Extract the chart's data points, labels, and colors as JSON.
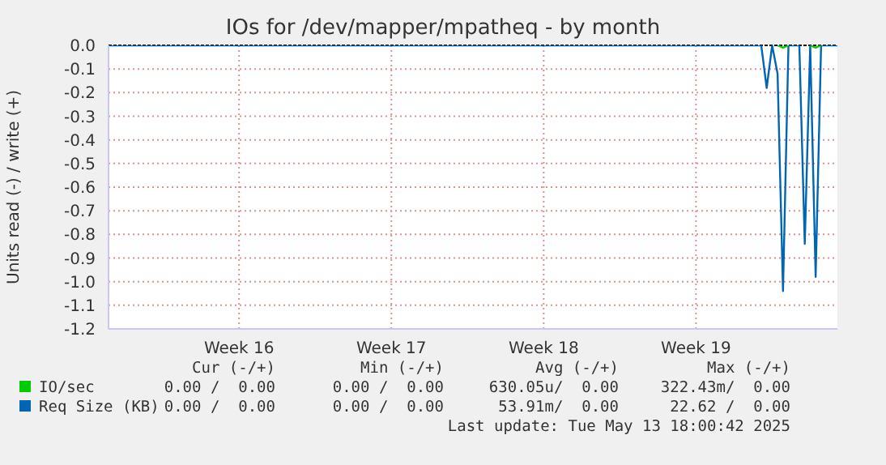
{
  "chart_data": {
    "type": "line",
    "title": "IOs for /dev/mapper/mpatheq - by month",
    "ylabel": "Units read (-) / write (+)",
    "categories": [
      null,
      null,
      null,
      null,
      null,
      null,
      null,
      null,
      null,
      null,
      null,
      null,
      null,
      null,
      null,
      null,
      null,
      null,
      null,
      null,
      null,
      null,
      null,
      null,
      "Week 16",
      null,
      null,
      null,
      null,
      null,
      null,
      null,
      null,
      null,
      null,
      null,
      null,
      null,
      null,
      null,
      null,
      null,
      null,
      null,
      null,
      null,
      null,
      null,
      null,
      null,
      null,
      null,
      "Week 17",
      null,
      null,
      null,
      null,
      null,
      null,
      null,
      null,
      null,
      null,
      null,
      null,
      null,
      null,
      null,
      null,
      null,
      null,
      null,
      null,
      null,
      null,
      null,
      null,
      null,
      null,
      null,
      "Week 18",
      null,
      null,
      null,
      null,
      null,
      null,
      null,
      null,
      null,
      null,
      null,
      null,
      null,
      null,
      null,
      null,
      null,
      null,
      null,
      null,
      null,
      null,
      null,
      null,
      null,
      null,
      null,
      "Week 19",
      null,
      null,
      null,
      null,
      null,
      null,
      null,
      null,
      null,
      null,
      null,
      null,
      null,
      null,
      null,
      null,
      null,
      null,
      null,
      null,
      null,
      null,
      null,
      null,
      null,
      null
    ],
    "series": [
      {
        "name": "IO/sec",
        "color": "#00cc00",
        "values": [
          null,
          null,
          null,
          null,
          null,
          null,
          null,
          null,
          null,
          null,
          null,
          null,
          null,
          null,
          null,
          null,
          null,
          null,
          null,
          null,
          null,
          null,
          null,
          null,
          null,
          null,
          null,
          null,
          null,
          null,
          null,
          null,
          null,
          null,
          null,
          null,
          null,
          null,
          null,
          null,
          null,
          null,
          null,
          null,
          null,
          null,
          null,
          null,
          null,
          null,
          null,
          null,
          null,
          null,
          null,
          null,
          null,
          null,
          null,
          null,
          null,
          null,
          null,
          null,
          null,
          null,
          null,
          null,
          null,
          null,
          null,
          null,
          null,
          null,
          null,
          null,
          null,
          null,
          null,
          null,
          null,
          null,
          null,
          null,
          null,
          null,
          null,
          null,
          null,
          null,
          null,
          null,
          null,
          null,
          null,
          null,
          null,
          null,
          null,
          null,
          null,
          null,
          null,
          null,
          null,
          null,
          null,
          null,
          null,
          null,
          null,
          null,
          null,
          null,
          null,
          null,
          null,
          null,
          null,
          null,
          null,
          null,
          null,
          0,
          -0.01,
          0,
          null,
          null,
          null,
          0,
          -0.01,
          0,
          null,
          null,
          null
        ]
      },
      {
        "name": "Req Size (KB)",
        "color": "#0066b3",
        "values": [
          0,
          0,
          0,
          0,
          0,
          0,
          0,
          0,
          0,
          0,
          0,
          0,
          0,
          0,
          0,
          0,
          0,
          0,
          0,
          0,
          0,
          0,
          0,
          0,
          0,
          0,
          0,
          0,
          0,
          0,
          0,
          0,
          0,
          0,
          0,
          0,
          0,
          0,
          0,
          0,
          0,
          0,
          0,
          0,
          0,
          0,
          0,
          0,
          0,
          0,
          0,
          0,
          0,
          0,
          0,
          0,
          0,
          0,
          0,
          0,
          0,
          0,
          0,
          0,
          0,
          0,
          0,
          0,
          0,
          0,
          0,
          0,
          0,
          0,
          0,
          0,
          0,
          0,
          0,
          0,
          0,
          0,
          0,
          0,
          0,
          0,
          0,
          0,
          0,
          0,
          0,
          0,
          0,
          0,
          0,
          0,
          0,
          0,
          0,
          0,
          0,
          0,
          0,
          0,
          0,
          0,
          0,
          0,
          0,
          0,
          0,
          0,
          0,
          0,
          0,
          0,
          0,
          0,
          0,
          0,
          0,
          -0.18,
          0,
          -0.12,
          -1.04,
          0,
          0,
          0,
          -0.84,
          0,
          -0.98,
          0,
          0,
          0,
          0
        ]
      }
    ],
    "ylim": [
      -1.2,
      0
    ],
    "yticks": [
      {
        "value": 0,
        "label": "0.0"
      },
      -0.1,
      -0.2,
      -0.3,
      -0.4,
      -0.5,
      -0.6,
      -0.7,
      -0.8,
      -0.9,
      {
        "value": -1,
        "label": "-1.0"
      },
      -1.1,
      -1.2
    ],
    "grid": true,
    "legend": "bottom",
    "marker": "none",
    "line_style": "solid",
    "annotations": [
      "Cur (-/+)",
      "Min (-/+)",
      "Avg (-/+)",
      "Max (-/+)",
      "0.00 /  0.00",
      "0.00 /  0.00",
      "630.05u/  0.00",
      "322.43m/  0.00",
      "0.00 /  0.00",
      "0.00 /  0.00",
      "53.91m/  0.00",
      "22.62 /  0.00",
      "Last update: Tue May 13 18:00:42 2025"
    ]
  }
}
